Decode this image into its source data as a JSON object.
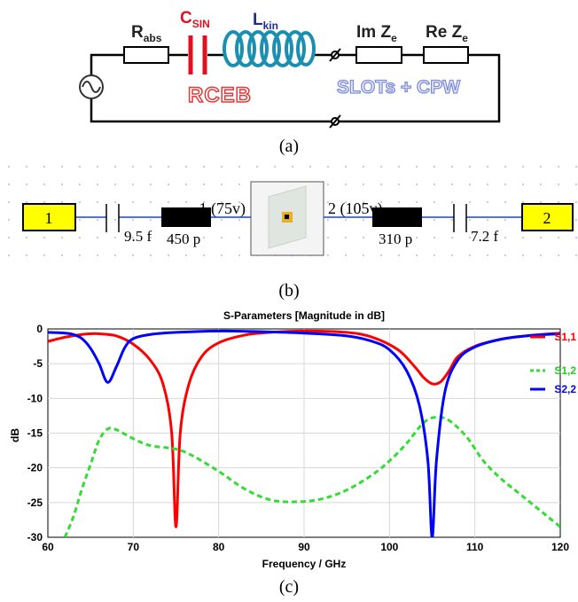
{
  "panel_a": {
    "label": "(a)",
    "r_abs": {
      "main": "R",
      "sub": "abs"
    },
    "c_sin": {
      "main": "C",
      "sub": "SIN"
    },
    "l_kin": {
      "main": "L",
      "sub": "kin"
    },
    "im_ze": {
      "main": "Im Z",
      "sub": "e"
    },
    "re_ze": {
      "main": "Re Z",
      "sub": "e"
    },
    "group_rceb": "RCEB",
    "group_slots": "SLOTs + CPW"
  },
  "panel_b": {
    "label": "(b)",
    "port1": "1",
    "port2": "2",
    "cap_left": "9.5 f",
    "ind_left": "450 p",
    "node_left": "1 (75v)",
    "node_right": "2 (105v)",
    "ind_right": "310 p",
    "cap_right": "7.2 f"
  },
  "panel_c": {
    "label": "(c)"
  },
  "chart_data": {
    "type": "line",
    "title": "S-Parameters [Magnitude in dB]",
    "xlabel": "Frequency / GHz",
    "ylabel": "dB",
    "xlim": [
      60,
      120
    ],
    "ylim": [
      -30,
      0
    ],
    "x_ticks": [
      60,
      70,
      80,
      90,
      100,
      110,
      120
    ],
    "y_ticks": [
      0,
      -5,
      -10,
      -15,
      -20,
      -25,
      -30
    ],
    "grid": true,
    "legend_position": "right",
    "series": [
      {
        "name": "S1,1",
        "color": "#ff0000",
        "style": "solid",
        "points": [
          [
            60,
            -1.8
          ],
          [
            62,
            -1.2
          ],
          [
            64,
            -0.8
          ],
          [
            65,
            -0.7
          ],
          [
            66,
            -0.7
          ],
          [
            68,
            -1.0
          ],
          [
            70,
            -2.2
          ],
          [
            72,
            -4.5
          ],
          [
            73.5,
            -8
          ],
          [
            74.5,
            -15
          ],
          [
            75,
            -28.5
          ],
          [
            75.5,
            -15
          ],
          [
            76.5,
            -8
          ],
          [
            78,
            -4
          ],
          [
            80,
            -2
          ],
          [
            83,
            -0.9
          ],
          [
            86,
            -0.5
          ],
          [
            90,
            -0.3
          ],
          [
            95,
            -0.5
          ],
          [
            98,
            -1.2
          ],
          [
            101,
            -3
          ],
          [
            103,
            -5.5
          ],
          [
            104,
            -7
          ],
          [
            105,
            -7.9
          ],
          [
            106,
            -7.6
          ],
          [
            107,
            -6
          ],
          [
            108,
            -4
          ],
          [
            110,
            -2.5
          ],
          [
            113,
            -1.5
          ],
          [
            116,
            -1.0
          ],
          [
            120,
            -0.6
          ]
        ]
      },
      {
        "name": "S1,2",
        "color": "#33dd33",
        "style": "dashed",
        "points": [
          [
            62,
            -30
          ],
          [
            63,
            -27
          ],
          [
            64,
            -23
          ],
          [
            65,
            -19.5
          ],
          [
            66,
            -16
          ],
          [
            67,
            -14.4
          ],
          [
            68,
            -14.5
          ],
          [
            70,
            -15.8
          ],
          [
            72,
            -16.8
          ],
          [
            75,
            -17.3
          ],
          [
            77,
            -18.3
          ],
          [
            80,
            -20.5
          ],
          [
            83,
            -23
          ],
          [
            86,
            -24.6
          ],
          [
            89,
            -24.9
          ],
          [
            92,
            -24.5
          ],
          [
            95,
            -23.2
          ],
          [
            98,
            -21
          ],
          [
            100,
            -19
          ],
          [
            102,
            -16.5
          ],
          [
            104,
            -13.5
          ],
          [
            105.5,
            -12.7
          ],
          [
            107,
            -13.2
          ],
          [
            109,
            -15.5
          ],
          [
            111,
            -19
          ],
          [
            113,
            -21.5
          ],
          [
            115,
            -23.5
          ],
          [
            118,
            -26.5
          ],
          [
            120,
            -28.5
          ]
        ]
      },
      {
        "name": "S2,2",
        "color": "#0000ff",
        "style": "solid",
        "points": [
          [
            60,
            -0.5
          ],
          [
            62,
            -0.6
          ],
          [
            63,
            -0.8
          ],
          [
            64,
            -1.4
          ],
          [
            65,
            -2.8
          ],
          [
            66,
            -5
          ],
          [
            67,
            -7.7
          ],
          [
            68,
            -5.5
          ],
          [
            69,
            -2.7
          ],
          [
            70,
            -1.4
          ],
          [
            72,
            -0.8
          ],
          [
            75,
            -0.5
          ],
          [
            80,
            -0.3
          ],
          [
            85,
            -0.4
          ],
          [
            90,
            -0.6
          ],
          [
            95,
            -1.0
          ],
          [
            98,
            -1.8
          ],
          [
            100,
            -3
          ],
          [
            102,
            -6
          ],
          [
            103.5,
            -11
          ],
          [
            104.5,
            -19
          ],
          [
            105,
            -30
          ],
          [
            105.5,
            -19
          ],
          [
            106.5,
            -9
          ],
          [
            108,
            -4.5
          ],
          [
            110,
            -2.6
          ],
          [
            113,
            -1.5
          ],
          [
            116,
            -1.0
          ],
          [
            120,
            -0.7
          ]
        ]
      }
    ]
  }
}
